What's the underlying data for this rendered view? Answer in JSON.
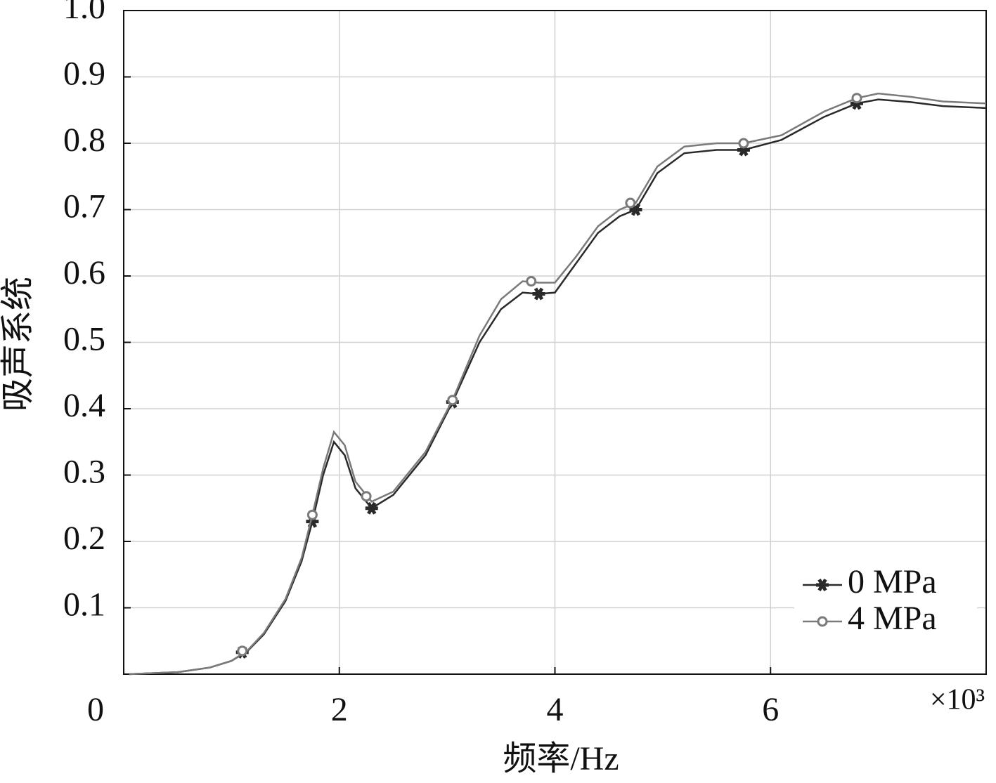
{
  "chart_data": {
    "type": "line",
    "x_label": "频率/Hz",
    "y_label": "吸声系统",
    "x_multiplier": "×10³",
    "xlim": [
      0,
      8
    ],
    "ylim": [
      0,
      1
    ],
    "xticks": [
      0,
      2,
      4,
      6
    ],
    "yticks": [
      0.1,
      0.2,
      0.3,
      0.4,
      0.5,
      0.6,
      0.7,
      0.8,
      0.9,
      {
        "value": 1,
        "label": "1.0"
      }
    ],
    "grid": true,
    "legend_position": "lower right",
    "x": [
      0.05,
      0.5,
      0.8,
      1.0,
      1.15,
      1.3,
      1.5,
      1.65,
      1.75,
      1.85,
      1.95,
      2.05,
      2.15,
      2.3,
      2.5,
      2.8,
      3.05,
      3.3,
      3.5,
      3.7,
      3.85,
      4.0,
      4.2,
      4.4,
      4.6,
      4.75,
      4.95,
      5.2,
      5.5,
      5.75,
      6.1,
      6.5,
      6.8,
      7.0,
      7.3,
      7.6,
      8.0
    ],
    "series": [
      {
        "name": "0 MPa",
        "color": "#2a2a2a",
        "marker": "star",
        "values": [
          0.0,
          0.003,
          0.01,
          0.02,
          0.035,
          0.06,
          0.11,
          0.17,
          0.23,
          0.3,
          0.35,
          0.33,
          0.28,
          0.25,
          0.27,
          0.33,
          0.41,
          0.5,
          0.55,
          0.575,
          0.573,
          0.575,
          0.62,
          0.665,
          0.69,
          0.7,
          0.755,
          0.785,
          0.79,
          0.79,
          0.805,
          0.84,
          0.86,
          0.866,
          0.862,
          0.856,
          0.853
        ],
        "marker_x": [
          1.1,
          1.75,
          2.3,
          3.05,
          3.85,
          4.75,
          5.75,
          6.8
        ],
        "marker_values": [
          0.033,
          0.23,
          0.25,
          0.41,
          0.573,
          0.7,
          0.79,
          0.86
        ]
      },
      {
        "name": "4 MPa",
        "color": "#7a7a7a",
        "marker": "circle",
        "values": [
          0.0,
          0.003,
          0.01,
          0.02,
          0.036,
          0.062,
          0.113,
          0.175,
          0.24,
          0.31,
          0.365,
          0.345,
          0.29,
          0.26,
          0.275,
          0.335,
          0.413,
          0.51,
          0.565,
          0.592,
          0.59,
          0.59,
          0.63,
          0.675,
          0.7,
          0.71,
          0.765,
          0.795,
          0.8,
          0.8,
          0.812,
          0.848,
          0.868,
          0.875,
          0.87,
          0.863,
          0.86
        ],
        "marker_x": [
          1.1,
          1.75,
          2.25,
          3.05,
          3.78,
          4.7,
          5.75,
          6.8
        ],
        "marker_values": [
          0.035,
          0.24,
          0.268,
          0.413,
          0.592,
          0.71,
          0.8,
          0.868
        ]
      }
    ]
  }
}
